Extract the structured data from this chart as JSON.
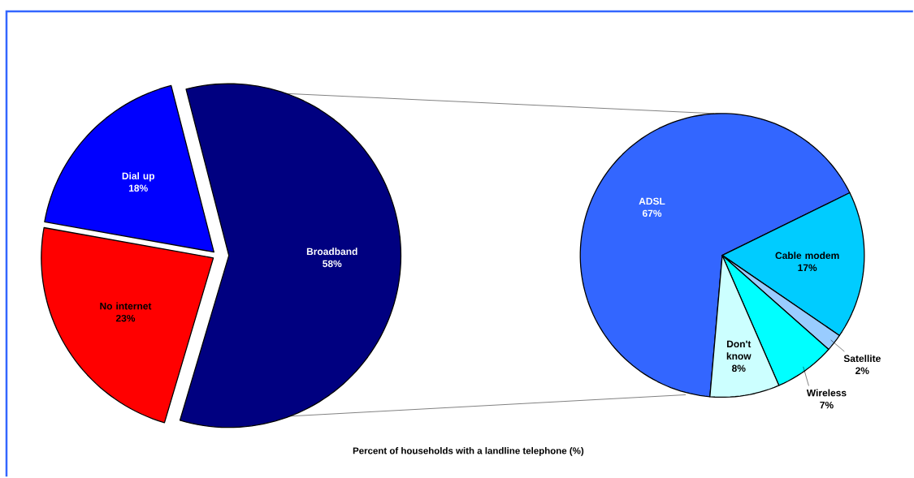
{
  "chart_data": [
    {
      "type": "pie",
      "categories": [
        "Broadband",
        "No internet",
        "Dial up"
      ],
      "values": [
        58,
        23,
        18
      ],
      "value_labels": [
        "58%",
        "23%",
        "18%"
      ],
      "colors": [
        "#000080",
        "#ff0000",
        "#0000ff"
      ],
      "annotations": [
        "Percent of households with a landline telephone (%)"
      ]
    },
    {
      "type": "pie",
      "categories": [
        "ADSL",
        "Cable modem",
        "Satellite",
        "Wireless",
        "Don't know"
      ],
      "values": [
        67,
        17,
        2,
        7,
        8
      ],
      "value_labels": [
        "67%",
        "17%",
        "2%",
        "7%",
        "8%"
      ],
      "colors": [
        "#3366ff",
        "#00ccff",
        "#99ccff",
        "#00ffff",
        "#ccffff"
      ]
    }
  ]
}
